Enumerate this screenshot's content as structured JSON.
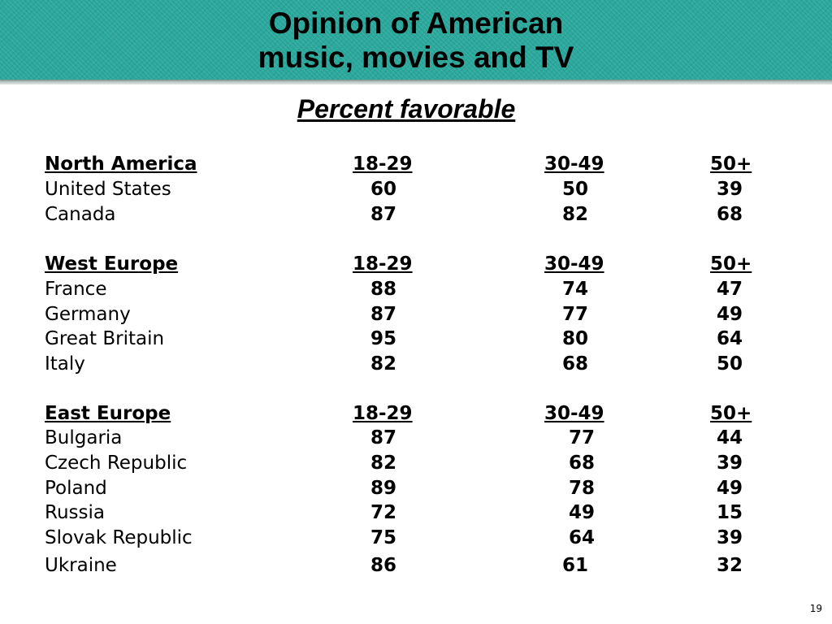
{
  "header": {
    "band_color": "#2aa89c",
    "title_line1": "Opinion of American",
    "title_line2": "music, movies and TV"
  },
  "subtitle": "Percent favorable",
  "columns": [
    "18-29",
    "30-49",
    "50+"
  ],
  "groups": [
    {
      "name": "North America",
      "rows": [
        {
          "country": "United States",
          "v": [
            "60",
            "50",
            "39"
          ]
        },
        {
          "country": "Canada",
          "v": [
            "87",
            "82",
            "68"
          ]
        }
      ]
    },
    {
      "name": "West Europe",
      "rows": [
        {
          "country": "France",
          "v": [
            "88",
            "74",
            "47"
          ]
        },
        {
          "country": "Germany",
          "v": [
            "87",
            "77",
            "49"
          ]
        },
        {
          "country": "Great Britain",
          "v": [
            "95",
            "80",
            "64"
          ]
        },
        {
          "country": "Italy",
          "v": [
            "82",
            "68",
            "50"
          ]
        }
      ]
    },
    {
      "name": "East Europe",
      "rows": [
        {
          "country": "Bulgaria",
          "v": [
            "87",
            "77",
            "44"
          ]
        },
        {
          "country": "Czech Republic",
          "v": [
            "82",
            "68",
            "39"
          ]
        },
        {
          "country": "Poland",
          "v": [
            "89",
            "78",
            "49"
          ]
        },
        {
          "country": "Russia",
          "v": [
            "72",
            "49",
            "15"
          ]
        },
        {
          "country": "Slovak Republic",
          "v": [
            "75",
            "64",
            "39"
          ]
        },
        {
          "country": "Ukraine",
          "v": [
            "86",
            "61",
            "32"
          ]
        }
      ]
    }
  ],
  "page_number": "19"
}
